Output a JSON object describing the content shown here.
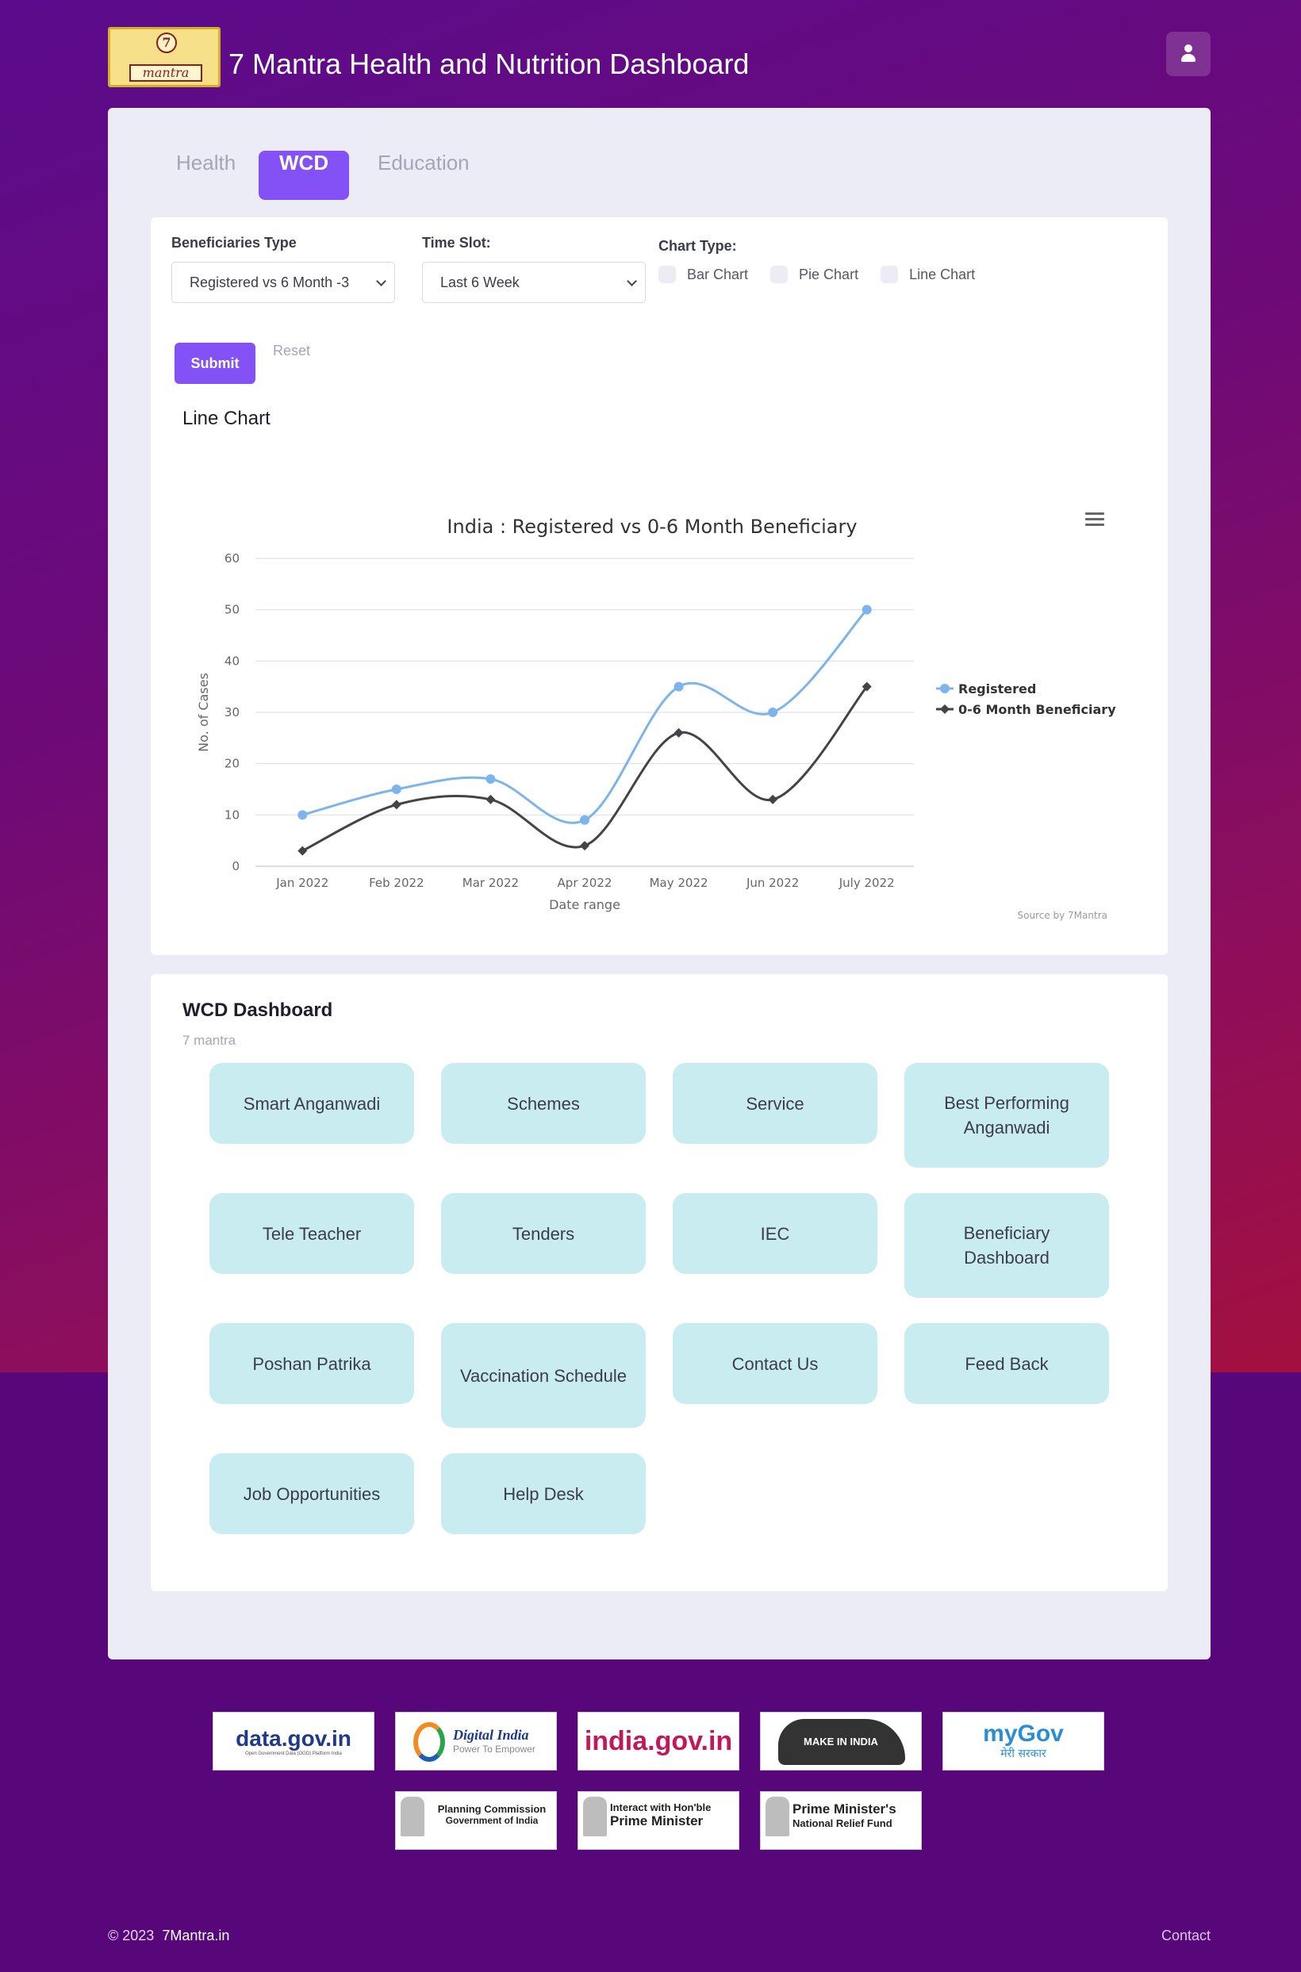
{
  "header": {
    "title": "7 Mantra Health and Nutrition Dashboard",
    "logo_number": "7",
    "logo_word": "mantra",
    "user_icon": "user-icon"
  },
  "tabs": [
    {
      "label": "Health",
      "active": false
    },
    {
      "label": "WCD",
      "active": true
    },
    {
      "label": "Education",
      "active": false
    }
  ],
  "filters": {
    "beneficiaries_label": "Beneficiaries Type",
    "beneficiaries_value": "Registered vs 6 Month -3",
    "timeslot_label": "Time Slot:",
    "timeslot_value": "Last 6 Week",
    "charttype_label": "Chart Type:",
    "chart_types": [
      "Bar Chart",
      "Pie Chart",
      "Line Chart"
    ],
    "submit_label": "Submit",
    "reset_label": "Reset"
  },
  "chart_section_title": "Line Chart",
  "chart_data": {
    "type": "line",
    "title": "India : Registered vs 0-6 Month Beneficiary",
    "xlabel": "Date range",
    "ylabel": "No. of Cases",
    "categories": [
      "Jan 2022",
      "Feb 2022",
      "Mar 2022",
      "Apr 2022",
      "May 2022",
      "Jun 2022",
      "July 2022"
    ],
    "ylim": [
      0,
      60
    ],
    "yticks": [
      0,
      10,
      20,
      30,
      40,
      50,
      60
    ],
    "series": [
      {
        "name": "Registered",
        "color": "#7cb5ec",
        "marker": "circle",
        "values": [
          10,
          15,
          17,
          9,
          35,
          30,
          50
        ]
      },
      {
        "name": "0-6 Month Beneficiary",
        "color": "#434348",
        "marker": "diamond",
        "values": [
          3,
          12,
          13,
          4,
          26,
          13,
          35
        ]
      }
    ],
    "legend_position": "right",
    "grid": true,
    "credit": "Source by 7Mantra"
  },
  "dashboard": {
    "title": "WCD Dashboard",
    "subtitle": "7 mantra",
    "tiles": [
      "Smart Anganwadi",
      "Schemes",
      "Service",
      "Best Performing Anganwadi",
      "Tele Teacher",
      "Tenders",
      "IEC",
      "Beneficiary Dashboard",
      "Poshan Patrika",
      "Vaccination Schedule",
      "Contact Us",
      "Feed Back",
      "Job Opportunities",
      "Help Desk"
    ]
  },
  "partner_logos": [
    {
      "text": "data.gov.in",
      "sub": "Open Government Data (OGD) Platform India"
    },
    {
      "text": "Digital India",
      "sub": "Power To Empower"
    },
    {
      "text": "india.gov.in",
      "sub": ""
    },
    {
      "text": "MAKE IN INDIA",
      "sub": ""
    },
    {
      "text": "myGov",
      "sub": "मेरी सरकार"
    },
    {
      "text": "Planning Commission",
      "sub": "Government of India"
    },
    {
      "text": "Interact with Hon'ble",
      "sub": "Prime Minister"
    },
    {
      "text": "Prime Minister's",
      "sub": "National Relief Fund"
    }
  ],
  "footer": {
    "copyright": "© 2023",
    "brand": "7Mantra.in",
    "contact": "Contact"
  }
}
